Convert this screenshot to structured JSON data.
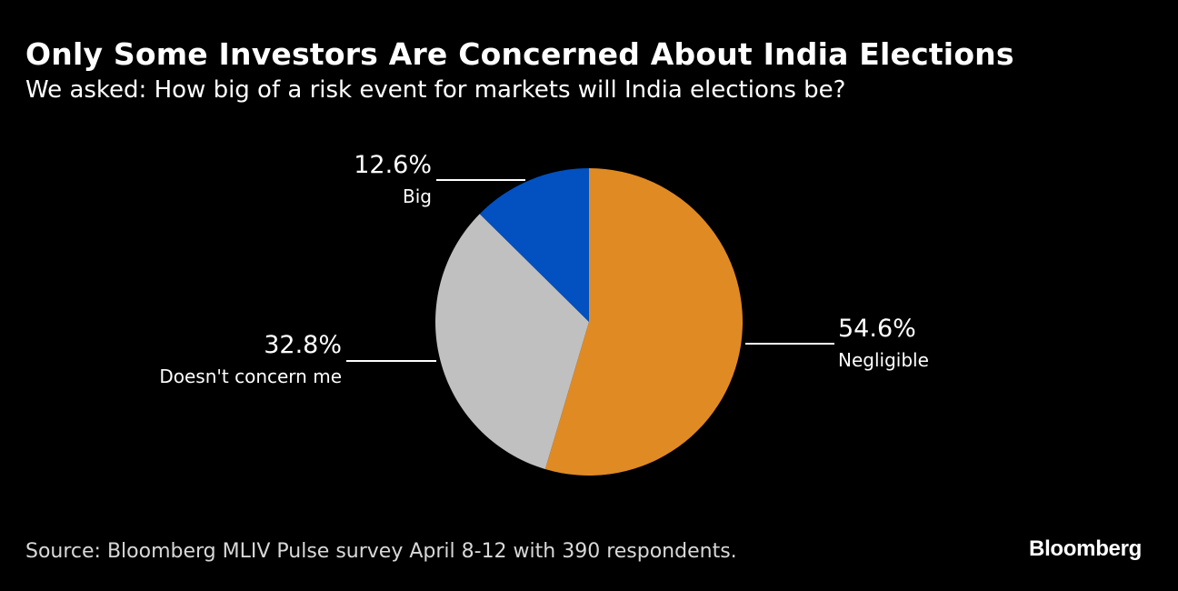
{
  "chart_data": {
    "type": "pie",
    "title": "Only Some Investors Are Concerned About India Elections",
    "subtitle": "We asked: How big of a risk event for markets will India elections be?",
    "start": "top",
    "direction": "clockwise",
    "slices": [
      {
        "label": "Negligible",
        "value": 54.6,
        "value_label": "54.6%",
        "color": "#E08A24",
        "label_side": "right"
      },
      {
        "label": "Doesn't concern me",
        "value": 32.8,
        "value_label": "32.8%",
        "color": "#C0C0C0",
        "label_side": "left"
      },
      {
        "label": "Big",
        "value": 12.6,
        "value_label": "12.6%",
        "color": "#0350C0",
        "label_side": "top-left"
      }
    ]
  },
  "footer": {
    "source": "Source: Bloomberg MLIV Pulse survey April 8-12 with 390 respondents.",
    "brand": "Bloomberg"
  },
  "colors": {
    "background": "#000000",
    "text": "#FFFFFF"
  }
}
